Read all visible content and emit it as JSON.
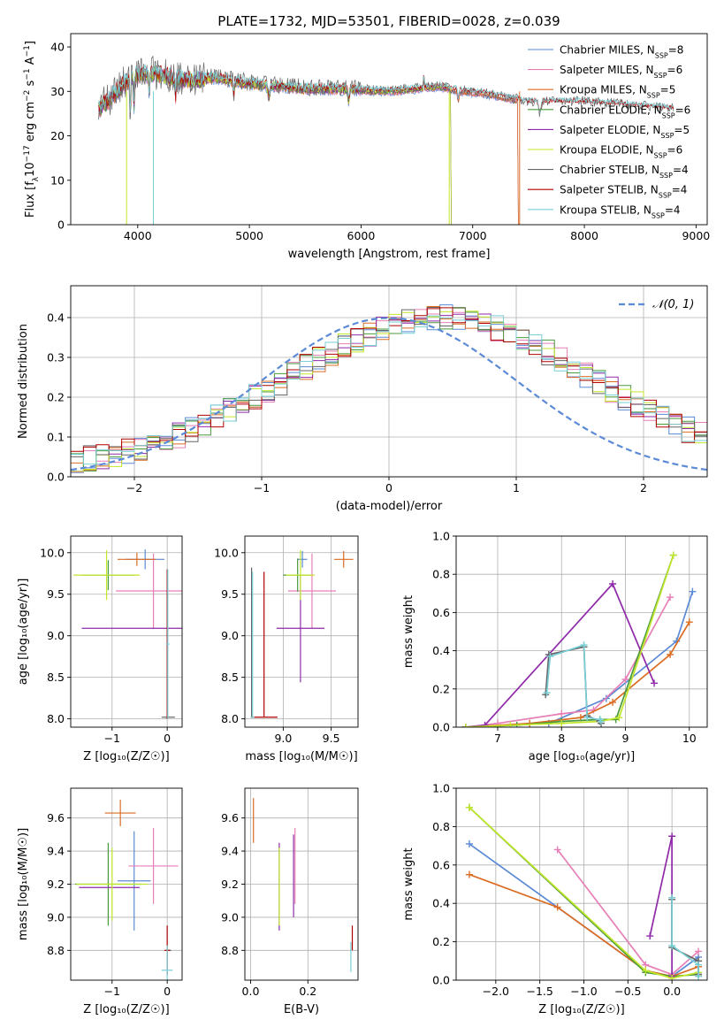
{
  "figure": {
    "title": "PLATE=1732, MJD=53501, FIBERID=0028, z=0.039"
  },
  "colors": {
    "Chabrier MILES": "#5b8ad6",
    "Salpeter MILES": "#e77fb7",
    "Kroupa MILES": "#db6c22",
    "Chabrier ELODIE": "#4a9a3c",
    "Salpeter ELODIE": "#8f2aa8",
    "Kroupa ELODIE": "#c2e62a",
    "Chabrier STELIB": "#666666",
    "Salpeter STELIB": "#b00000",
    "Kroupa STELIB": "#79cfd6",
    "normal": "#5b8ad6"
  },
  "chart_data": [
    {
      "id": "spectrum",
      "type": "line",
      "xlabel": "wavelength [Angstrom, rest frame]",
      "ylabel_parts": [
        "Flux [f",
        "λ",
        "10",
        "−17",
        " erg cm",
        "−2",
        " s",
        "−1",
        " A",
        "−1",
        "]"
      ],
      "xlim": [
        3400,
        9100
      ],
      "ylim": [
        0,
        43
      ],
      "xticks": [
        4000,
        5000,
        6000,
        7000,
        8000,
        9000
      ],
      "yticks": [
        0,
        10,
        20,
        30,
        40
      ],
      "legend_position": "top-right",
      "series": [
        {
          "name": "Chabrier MILES",
          "nssp": "8",
          "color_key": "Chabrier MILES"
        },
        {
          "name": "Salpeter MILES",
          "nssp": "6",
          "color_key": "Salpeter MILES"
        },
        {
          "name": "Kroupa MILES",
          "nssp": "5",
          "color_key": "Kroupa MILES"
        },
        {
          "name": "Chabrier ELODIE",
          "nssp": "6",
          "color_key": "Chabrier ELODIE"
        },
        {
          "name": "Salpeter ELODIE",
          "nssp": "5",
          "color_key": "Salpeter ELODIE"
        },
        {
          "name": "Kroupa ELODIE",
          "nssp": "6",
          "color_key": "Kroupa ELODIE"
        },
        {
          "name": "Chabrier STELIB",
          "nssp": "4",
          "color_key": "Chabrier STELIB"
        },
        {
          "name": "Salpeter STELIB",
          "nssp": "4",
          "color_key": "Salpeter STELIB"
        },
        {
          "name": "Kroupa STELIB",
          "nssp": "4",
          "color_key": "Kroupa STELIB"
        }
      ],
      "approx_continuum": {
        "x": [
          3650,
          3750,
          3850,
          3950,
          4050,
          4150,
          4300,
          4500,
          4700,
          4900,
          5100,
          5300,
          5500,
          5700,
          5900,
          6100,
          6300,
          6500,
          6700,
          6900,
          7100,
          7300,
          7500,
          7700,
          8000,
          8300,
          8500,
          8800
        ],
        "y": [
          26,
          28,
          31,
          33,
          34,
          34,
          33,
          32.5,
          33,
          32,
          31.5,
          31,
          30.5,
          30.5,
          30.5,
          30,
          30,
          30.5,
          31,
          30,
          29.5,
          28.5,
          27.5,
          27.5,
          27.5,
          27,
          26.5,
          26
        ]
      }
    },
    {
      "id": "residuals",
      "type": "histogram",
      "xlabel": "(data-model)/error",
      "ylabel": "Normed distribution",
      "xlim": [
        -2.5,
        2.5
      ],
      "ylim": [
        0,
        0.48
      ],
      "xticks": [
        -2,
        -1,
        0,
        1,
        2
      ],
      "yticks": [
        0.0,
        0.1,
        0.2,
        0.3,
        0.4
      ],
      "grid": true,
      "bin_width": 0.1,
      "legend": [
        {
          "label": "𝒩(0, 1)",
          "style": "dashed"
        }
      ],
      "legend_position": "top-right",
      "envelope": [
        0.043,
        0.047,
        0.052,
        0.058,
        0.065,
        0.073,
        0.082,
        0.093,
        0.105,
        0.118,
        0.132,
        0.148,
        0.165,
        0.182,
        0.2,
        0.218,
        0.237,
        0.256,
        0.275,
        0.294,
        0.312,
        0.329,
        0.345,
        0.36,
        0.373,
        0.384,
        0.392,
        0.397,
        0.4,
        0.4,
        0.397,
        0.392,
        0.384,
        0.373,
        0.36,
        0.345,
        0.329,
        0.312,
        0.294,
        0.275,
        0.256,
        0.237,
        0.218,
        0.2,
        0.182,
        0.165,
        0.148,
        0.132,
        0.118,
        0.105,
        0.093
      ]
    },
    {
      "id": "age_vs_Z",
      "type": "scatter",
      "xlabel": "Z [log₁₀(Z/Z☉)]",
      "ylabel": "age  [log₁₀(age/yr)]",
      "xlim": [
        -1.75,
        0.27
      ],
      "ylim": [
        7.9,
        10.2
      ],
      "xticks": [
        -1,
        0
      ],
      "yticks": [
        8.0,
        8.5,
        9.0,
        9.5,
        10.0
      ],
      "grid": true,
      "points": [
        {
          "series": "Chabrier MILES",
          "x": -0.4,
          "y": 9.92,
          "xerr": 0.35,
          "yerr": 0.12
        },
        {
          "series": "Salpeter MILES",
          "x": -0.25,
          "y": 9.54,
          "xerr": 0.68,
          "yerr": 0.45
        },
        {
          "series": "Kroupa MILES",
          "x": -0.55,
          "y": 9.92,
          "xerr": 0.35,
          "yerr": 0.08
        },
        {
          "series": "Chabrier ELODIE",
          "x": -1.07,
          "y": 9.73,
          "xerr": 0.48,
          "yerr": 0.18
        },
        {
          "series": "Salpeter ELODIE",
          "x": -0.6,
          "y": 9.09,
          "xerr": 0.95,
          "yerr": 0.0
        },
        {
          "series": "Kroupa ELODIE",
          "x": -1.1,
          "y": 9.73,
          "xerr": 0.6,
          "yerr": 0.3
        },
        {
          "series": "Chabrier STELIB",
          "x": 0.02,
          "y": 8.02,
          "xerr": 0.12,
          "yerr": 0.0
        },
        {
          "series": "Salpeter STELIB",
          "x": 0.0,
          "y": 8.9,
          "xerr": 0.0,
          "yerr": 0.9
        },
        {
          "series": "Kroupa STELIB",
          "x": 0.01,
          "y": 8.9,
          "xerr": 0.03,
          "yerr": 0.9
        }
      ]
    },
    {
      "id": "age_vs_mass",
      "type": "scatter",
      "xlabel": "mass [log₁₀(M/M☉)]",
      "ylabel": "",
      "xlim": [
        8.6,
        9.78
      ],
      "ylim": [
        7.9,
        10.2
      ],
      "xticks": [
        9.0,
        9.5
      ],
      "yticks": [
        8.0,
        8.5,
        9.0,
        9.5,
        10.0
      ],
      "grid": true,
      "points": [
        {
          "series": "Chabrier MILES",
          "x": 9.2,
          "y": 9.92,
          "xerr": 0.05,
          "yerr": 0.1
        },
        {
          "series": "Salpeter MILES",
          "x": 9.3,
          "y": 9.54,
          "xerr": 0.25,
          "yerr": 0.45
        },
        {
          "series": "Kroupa MILES",
          "x": 9.63,
          "y": 9.92,
          "xerr": 0.1,
          "yerr": 0.1
        },
        {
          "series": "Chabrier ELODIE",
          "x": 9.15,
          "y": 9.73,
          "xerr": 0.15,
          "yerr": 0.2
        },
        {
          "series": "Salpeter ELODIE",
          "x": 9.18,
          "y": 9.09,
          "xerr": 0.25,
          "yerr": 0.65
        },
        {
          "series": "Kroupa ELODIE",
          "x": 9.18,
          "y": 9.73,
          "xerr": 0.15,
          "yerr": 0.3
        },
        {
          "series": "Chabrier STELIB",
          "x": 8.66,
          "y": 8.02,
          "xerr": 0.0,
          "yerr": 0.0
        },
        {
          "series": "Salpeter STELIB",
          "x": 8.8,
          "y": 8.02,
          "xerr": 0.14,
          "yerr": 0.0
        },
        {
          "series": "Kroupa STELIB",
          "x": 8.68,
          "y": 8.02,
          "xerr": 0.02,
          "yerr": 0.0
        }
      ],
      "bars": [
        {
          "series": "Chabrier STELIB",
          "x": 8.67,
          "y1": 8.02,
          "y2": 9.82
        },
        {
          "series": "Salpeter STELIB",
          "x": 8.8,
          "y1": 8.02,
          "y2": 9.77
        },
        {
          "series": "Kroupa STELIB",
          "x": 8.68,
          "y1": 8.02,
          "y2": 9.77
        }
      ]
    },
    {
      "id": "massweight_vs_age",
      "type": "line",
      "xlabel": "age  [log₁₀(age/yr)]",
      "ylabel": "mass weight",
      "xlim": [
        6.35,
        10.28
      ],
      "ylim": [
        0,
        1
      ],
      "xticks": [
        7,
        8,
        9,
        10
      ],
      "yticks": [
        0.0,
        0.2,
        0.4,
        0.6,
        0.8,
        1.0
      ],
      "grid": true,
      "series": [
        {
          "color_key": "Chabrier MILES",
          "x": [
            6.5,
            7.8,
            8.7,
            9.8,
            10.05
          ],
          "y": [
            0.0,
            0.02,
            0.15,
            0.45,
            0.71
          ]
        },
        {
          "color_key": "Salpeter MILES",
          "x": [
            6.5,
            7.0,
            8.0,
            8.5,
            9.0,
            9.7
          ],
          "y": [
            0.0,
            0.02,
            0.07,
            0.09,
            0.25,
            0.68
          ]
        },
        {
          "color_key": "Kroupa MILES",
          "x": [
            6.5,
            7.5,
            8.3,
            8.8,
            9.7,
            10.0
          ],
          "y": [
            0.0,
            0.02,
            0.05,
            0.13,
            0.38,
            0.55
          ]
        },
        {
          "color_key": "Chabrier ELODIE",
          "x": [
            6.5,
            7.3,
            8.0,
            8.6,
            8.85,
            9.75
          ],
          "y": [
            0.0,
            0.01,
            0.03,
            0.04,
            0.04,
            0.9
          ]
        },
        {
          "color_key": "Salpeter ELODIE",
          "x": [
            6.5,
            6.8,
            8.8,
            9.45
          ],
          "y": [
            0.0,
            0.01,
            0.75,
            0.23
          ]
        },
        {
          "color_key": "Kroupa ELODIE",
          "x": [
            6.5,
            7.2,
            8.0,
            8.6,
            8.9,
            9.75
          ],
          "y": [
            0.0,
            0.01,
            0.02,
            0.03,
            0.05,
            0.9
          ]
        },
        {
          "color_key": "Chabrier STELIB",
          "x": [
            7.75,
            7.8,
            8.35,
            8.4,
            8.6,
            8.62
          ],
          "y": [
            0.17,
            0.38,
            0.42,
            0.06,
            0.03,
            0.02
          ]
        },
        {
          "color_key": "Kroupa STELIB",
          "x": [
            7.77,
            7.82,
            8.35,
            8.4,
            8.6,
            8.62
          ],
          "y": [
            0.18,
            0.37,
            0.43,
            0.05,
            0.04,
            0.03
          ]
        }
      ]
    },
    {
      "id": "mass_vs_Z",
      "type": "scatter",
      "xlabel": "Z [log₁₀(Z/Z☉)]",
      "ylabel": "mass [log₁₀(M/M☉)]",
      "xlim": [
        -1.75,
        0.27
      ],
      "ylim": [
        8.62,
        9.78
      ],
      "xticks": [
        -1,
        0
      ],
      "yticks": [
        8.8,
        9.0,
        9.2,
        9.4,
        9.6
      ],
      "grid": true,
      "points": [
        {
          "series": "Chabrier MILES",
          "x": -0.6,
          "y": 9.22,
          "xerr": 0.3,
          "yerr": 0.3
        },
        {
          "series": "Salpeter MILES",
          "x": -0.25,
          "y": 9.31,
          "xerr": 0.45,
          "yerr": 0.23
        },
        {
          "series": "Kroupa MILES",
          "x": -0.85,
          "y": 9.63,
          "xerr": 0.28,
          "yerr": 0.08
        },
        {
          "series": "Chabrier ELODIE",
          "x": -1.07,
          "y": 9.2,
          "xerr": 0.6,
          "yerr": 0.25
        },
        {
          "series": "Salpeter ELODIE",
          "x": -1.05,
          "y": 9.18,
          "xerr": 0.55,
          "yerr": 0.0
        },
        {
          "series": "Kroupa ELODIE",
          "x": -1.0,
          "y": 9.2,
          "xerr": 0.65,
          "yerr": 0.22
        },
        {
          "series": "Chabrier STELIB",
          "x": 0.02,
          "y": 8.8,
          "xerr": 0.05,
          "yerr": 0.0
        },
        {
          "series": "Salpeter STELIB",
          "x": 0.0,
          "y": 8.8,
          "xerr": 0.05,
          "yerr": 0.15
        },
        {
          "series": "Kroupa STELIB",
          "x": 0.0,
          "y": 8.68,
          "xerr": 0.1,
          "yerr": 0.15
        }
      ]
    },
    {
      "id": "mass_vs_ebv",
      "type": "scatter",
      "xlabel": "E(B-V)",
      "ylabel": "",
      "xlim": [
        -0.02,
        0.375
      ],
      "ylim": [
        8.62,
        9.78
      ],
      "xticks": [
        0.0,
        0.2
      ],
      "yticks": [
        8.8,
        9.0,
        9.2,
        9.4,
        9.6
      ],
      "grid": true,
      "bars": [
        {
          "series": "Kroupa MILES",
          "x": 0.01,
          "y1": 9.45,
          "y2": 9.72
        },
        {
          "series": "Salpeter ELODIE",
          "x": 0.1,
          "y1": 8.92,
          "y2": 9.45
        },
        {
          "series": "Kroupa ELODIE",
          "x": 0.1,
          "y1": 8.95,
          "y2": 9.42
        },
        {
          "series": "Salpeter MILES",
          "x": 0.155,
          "y1": 9.08,
          "y2": 9.54
        },
        {
          "series": "Salpeter ELODIE",
          "x": 0.15,
          "y1": 9.0,
          "y2": 9.5
        },
        {
          "series": "Salpeter STELIB",
          "x": 0.355,
          "y1": 8.8,
          "y2": 8.95
        },
        {
          "series": "Kroupa STELIB",
          "x": 0.35,
          "y1": 8.67,
          "y2": 8.85
        }
      ]
    },
    {
      "id": "massweight_vs_Z",
      "type": "line",
      "xlabel": "Z [log₁₀(Z/Z☉)]",
      "ylabel": "mass weight",
      "xlim": [
        -2.45,
        0.4
      ],
      "ylim": [
        0,
        1
      ],
      "xticks": [
        -2.0,
        -1.5,
        -1.0,
        -0.5,
        0.0
      ],
      "yticks": [
        0.0,
        0.2,
        0.4,
        0.6,
        0.8,
        1.0
      ],
      "grid": true,
      "series": [
        {
          "color_key": "Chabrier MILES",
          "x": [
            -2.3,
            -0.3,
            0.0,
            0.3
          ],
          "y": [
            0.71,
            0.05,
            0.02,
            0.12
          ]
        },
        {
          "color_key": "Salpeter MILES",
          "x": [
            -1.3,
            -0.3,
            0.0,
            0.3
          ],
          "y": [
            0.68,
            0.08,
            0.03,
            0.15
          ]
        },
        {
          "color_key": "Kroupa MILES",
          "x": [
            -2.3,
            -1.3,
            -0.3,
            0.0,
            0.3
          ],
          "y": [
            0.55,
            0.38,
            0.05,
            0.02,
            0.07
          ]
        },
        {
          "color_key": "Chabrier ELODIE",
          "x": [
            -2.3,
            -0.3,
            0.0,
            0.3
          ],
          "y": [
            0.9,
            0.04,
            0.02,
            0.03
          ]
        },
        {
          "color_key": "Salpeter ELODIE",
          "x": [
            -0.25,
            0.0,
            0.0
          ],
          "y": [
            0.23,
            0.75,
            0.02
          ]
        },
        {
          "color_key": "Kroupa ELODIE",
          "x": [
            -2.3,
            -0.3,
            0.0,
            0.3
          ],
          "y": [
            0.9,
            0.05,
            0.01,
            0.04
          ]
        },
        {
          "color_key": "Chabrier STELIB",
          "x": [
            0.0,
            0.0,
            0.3,
            0.3
          ],
          "y": [
            0.42,
            0.17,
            0.1,
            0.03
          ]
        },
        {
          "color_key": "Kroupa STELIB",
          "x": [
            0.0,
            0.0,
            0.3,
            0.3
          ],
          "y": [
            0.43,
            0.18,
            0.08,
            0.02
          ]
        }
      ]
    }
  ]
}
